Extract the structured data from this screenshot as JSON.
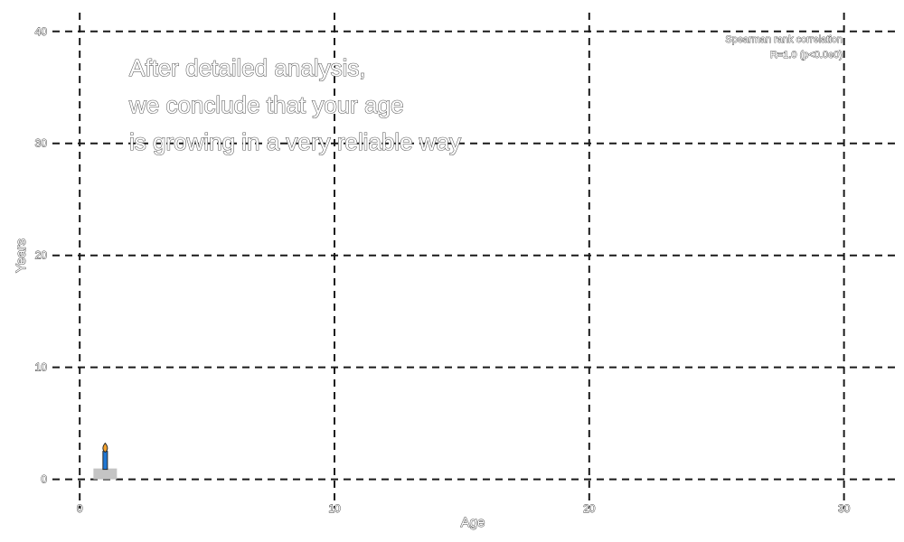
{
  "chart_data": {
    "type": "scatter",
    "title": "",
    "xlabel": "Age",
    "ylabel": "Years",
    "xlim": [
      -1,
      32
    ],
    "ylim": [
      -1,
      42
    ],
    "xticks": [
      0,
      10,
      20,
      30
    ],
    "yticks": [
      0,
      10,
      20,
      30,
      40
    ],
    "grid": true,
    "legend": "none",
    "series": [
      {
        "marker": "birthday-candle-icon",
        "x": [
          1
        ],
        "y": [
          0
        ]
      }
    ],
    "annotation": {
      "lines": [
        "After detailed analysis,",
        "we conclude that your age",
        "is growing in a very reliable way"
      ]
    },
    "stats": {
      "lines": [
        "Spearman rank correlation",
        "R=1.0 (p<0.0e0)"
      ],
      "placement": "top-right"
    },
    "colors": {
      "candle": "#1f77d4",
      "flame": "#f2a12e",
      "cake": "#c4c4c4",
      "grid": "#1a1a1a"
    }
  }
}
